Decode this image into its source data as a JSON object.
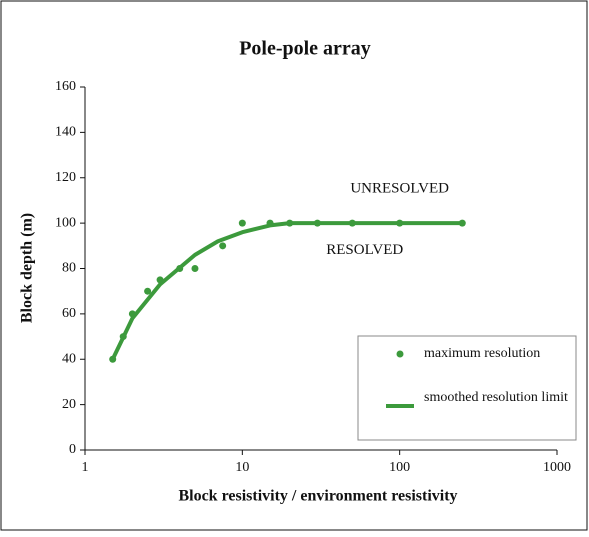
{
  "chart_data": {
    "type": "scatter",
    "title": "Pole-pole array",
    "xlabel": "Block resistivity / environment resistivity",
    "ylabel": "Block depth (m)",
    "xscale": "log",
    "xlim": [
      1,
      1000
    ],
    "xticks": [
      1,
      10,
      100,
      1000
    ],
    "ylim": [
      0,
      160
    ],
    "yticks": [
      0,
      20,
      40,
      60,
      80,
      100,
      120,
      140,
      160
    ],
    "legend": "lower right",
    "annotations": [
      {
        "text": "UNRESOLVED",
        "x": 100,
        "y": 115
      },
      {
        "text": "RESOLVED",
        "x": 60,
        "y": 88
      }
    ],
    "series": [
      {
        "name": "maximum resolution",
        "mode": "markers",
        "color": "#3c9a3c",
        "x": [
          1.5,
          1.75,
          2,
          2.5,
          3,
          4,
          5,
          7.5,
          10,
          15,
          20,
          30,
          50,
          100,
          250
        ],
        "values": [
          40,
          50,
          60,
          70,
          75,
          80,
          80,
          90,
          100,
          100,
          100,
          100,
          100,
          100,
          100
        ]
      },
      {
        "name": "smoothed resolution limit",
        "mode": "line",
        "color": "#3c9a3c",
        "x": [
          1.5,
          2,
          3,
          5,
          7,
          10,
          15,
          20,
          30,
          50,
          100,
          250
        ],
        "values": [
          40,
          58,
          73,
          86,
          92,
          96,
          99,
          100,
          100,
          100,
          100,
          100
        ]
      }
    ]
  }
}
